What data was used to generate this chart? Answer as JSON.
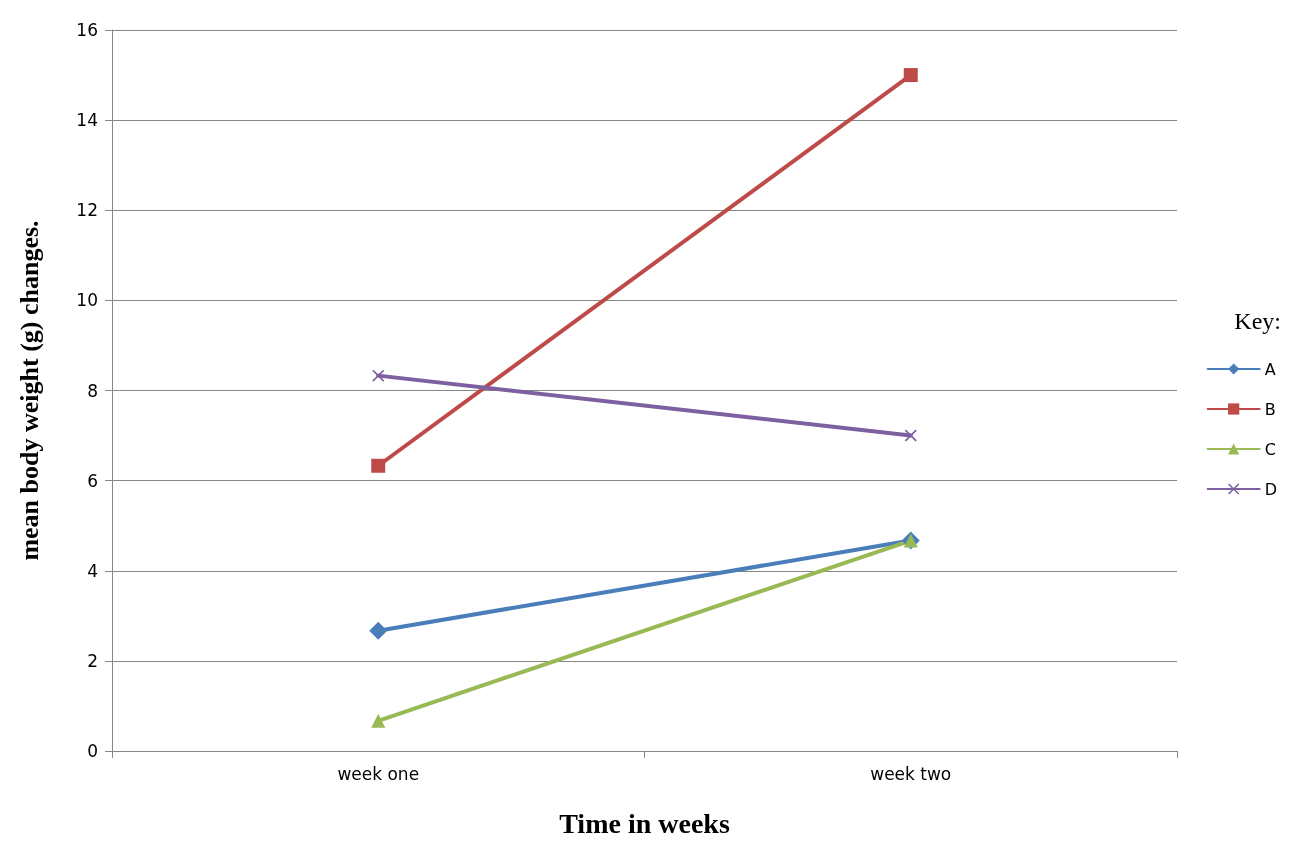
{
  "chart_data": {
    "type": "line",
    "xlabel": "Time in weeks",
    "ylabel": "mean body weight (g) changes.",
    "legend_title": "Key:",
    "categories": [
      "week one",
      "week two"
    ],
    "series": [
      {
        "name": "A",
        "color": "#4a7ebb",
        "marker": "diamond",
        "values": [
          2.67,
          4.67
        ]
      },
      {
        "name": "B",
        "color": "#be4b48",
        "marker": "square",
        "values": [
          6.33,
          15
        ]
      },
      {
        "name": "C",
        "color": "#98b954",
        "marker": "triangle",
        "values": [
          0.67,
          4.67
        ]
      },
      {
        "name": "D",
        "color": "#7d60a0",
        "marker": "cross",
        "values": [
          8.33,
          7
        ]
      }
    ],
    "ylim": [
      0,
      16
    ],
    "yticks": [
      0,
      2,
      4,
      6,
      8,
      10,
      12,
      14,
      16
    ],
    "grid": "y",
    "legend": "right",
    "line_style": "solid"
  }
}
